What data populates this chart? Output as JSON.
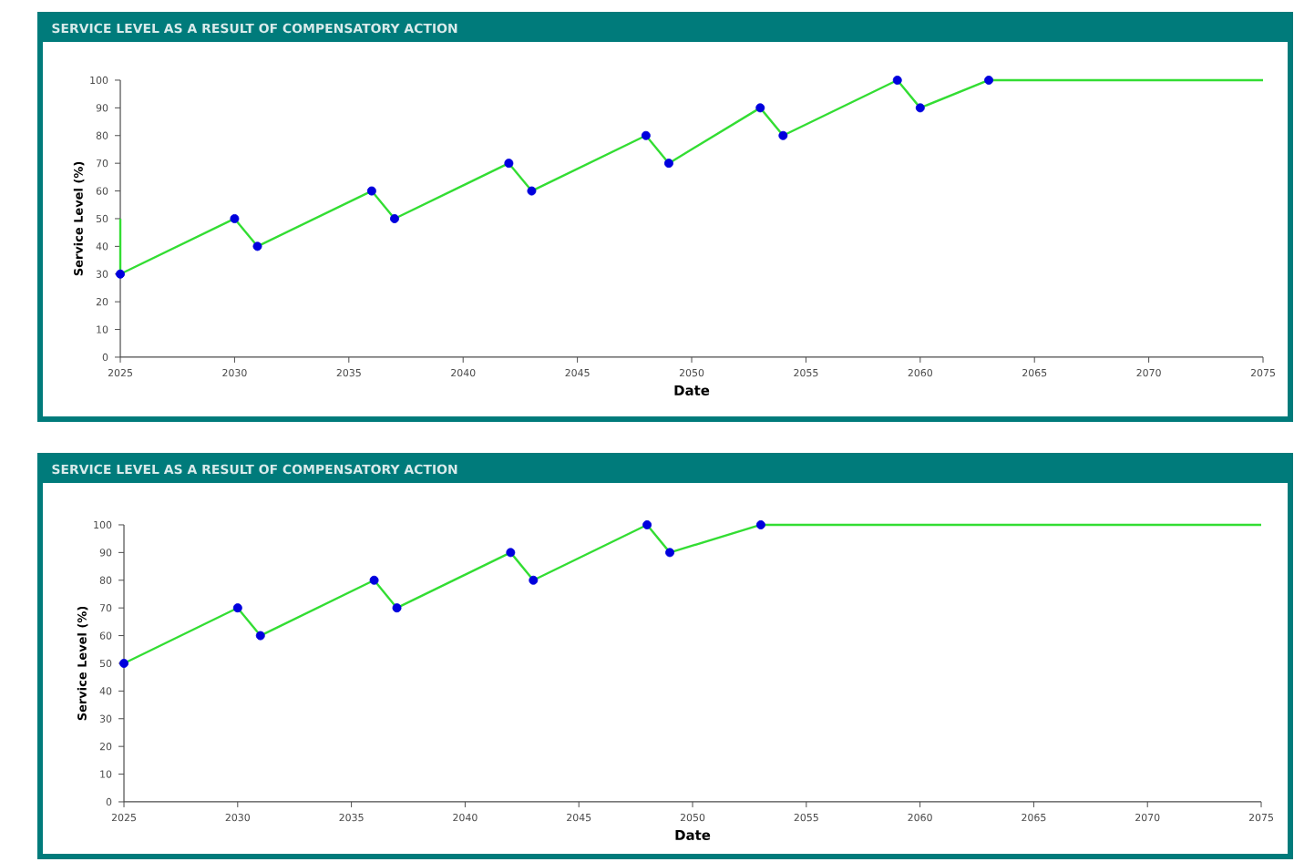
{
  "chart_data": [
    {
      "type": "line",
      "title": "SERVICE LEVEL AS A RESULT OF COMPENSATORY ACTION",
      "xlabel": "Date",
      "ylabel": "Service Level (%)",
      "xlim": [
        2025,
        2075
      ],
      "xticks": [
        2025,
        2030,
        2035,
        2040,
        2045,
        2050,
        2055,
        2060,
        2065,
        2070,
        2075
      ],
      "ylim": [
        0,
        100
      ],
      "yticks": [
        0,
        10,
        20,
        30,
        40,
        50,
        60,
        70,
        80,
        90,
        100
      ],
      "series": [
        {
          "color": "#33dd33",
          "x": [
            2025,
            2025,
            2030,
            2031,
            2036,
            2037,
            2042,
            2043,
            2048,
            2049,
            2053,
            2054,
            2059,
            2060,
            2063,
            2075
          ],
          "values": [
            50,
            30,
            50,
            40,
            60,
            50,
            70,
            60,
            80,
            70,
            90,
            80,
            100,
            90,
            100,
            100
          ]
        },
        {
          "type": "scatter",
          "color": "#0000dd",
          "x": [
            2025,
            2030,
            2031,
            2036,
            2037,
            2042,
            2043,
            2048,
            2049,
            2053,
            2054,
            2059,
            2060,
            2063
          ],
          "values": [
            30,
            50,
            40,
            60,
            50,
            70,
            60,
            80,
            70,
            90,
            80,
            100,
            90,
            100
          ]
        }
      ]
    },
    {
      "type": "line",
      "title": "SERVICE LEVEL AS A RESULT OF COMPENSATORY ACTION",
      "xlabel": "Date",
      "ylabel": "Service Level (%)",
      "xlim": [
        2025,
        2075
      ],
      "xticks": [
        2025,
        2030,
        2035,
        2040,
        2045,
        2050,
        2055,
        2060,
        2065,
        2070,
        2075
      ],
      "ylim": [
        0,
        100
      ],
      "yticks": [
        0,
        10,
        20,
        30,
        40,
        50,
        60,
        70,
        80,
        90,
        100
      ],
      "series": [
        {
          "color": "#33dd33",
          "x": [
            2025,
            2030,
            2031,
            2036,
            2037,
            2042,
            2043,
            2048,
            2049,
            2053,
            2075
          ],
          "values": [
            50,
            70,
            60,
            80,
            70,
            90,
            80,
            100,
            90,
            100,
            100
          ]
        },
        {
          "type": "scatter",
          "color": "#0000dd",
          "x": [
            2025,
            2030,
            2031,
            2036,
            2037,
            2042,
            2043,
            2048,
            2049,
            2053
          ],
          "values": [
            50,
            70,
            60,
            80,
            70,
            90,
            80,
            100,
            90,
            100
          ]
        }
      ]
    }
  ]
}
